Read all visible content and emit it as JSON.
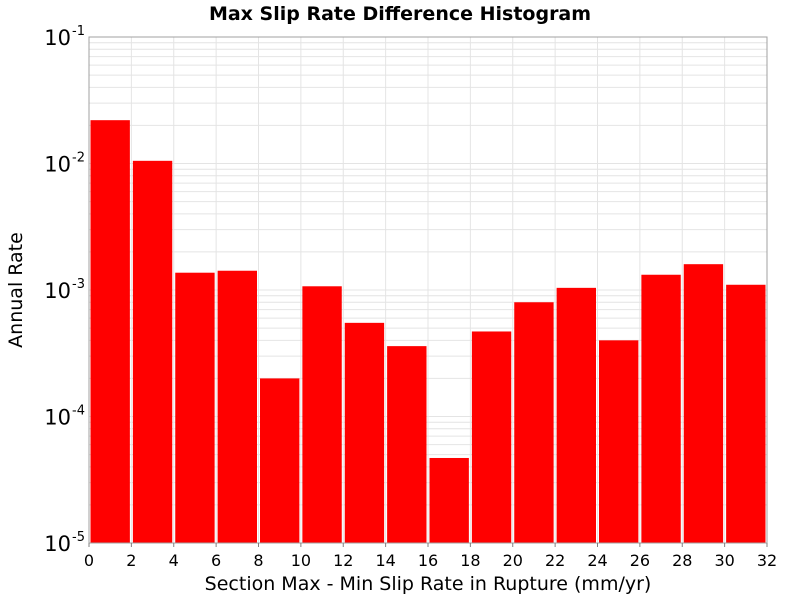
{
  "chart_data": {
    "type": "bar",
    "title": "Max Slip Rate Difference Histogram",
    "xlabel": "Section Max - Min Slip Rate in Rupture (mm/yr)",
    "ylabel": "Annual Rate",
    "y_scale": "log",
    "xlim": [
      0,
      32
    ],
    "ylim": [
      1e-05,
      0.1
    ],
    "x_ticks": [
      "0",
      "2",
      "4",
      "6",
      "8",
      "10",
      "12",
      "14",
      "16",
      "18",
      "20",
      "22",
      "24",
      "26",
      "28",
      "30",
      "32"
    ],
    "y_ticks": [
      {
        "base": "10",
        "exp": "-5",
        "value": 1e-05
      },
      {
        "base": "10",
        "exp": "-4",
        "value": 0.0001
      },
      {
        "base": "10",
        "exp": "-3",
        "value": 0.001
      },
      {
        "base": "10",
        "exp": "-2",
        "value": 0.01
      },
      {
        "base": "10",
        "exp": "-1",
        "value": 0.1
      }
    ],
    "bin_width": 2,
    "bins": [
      {
        "x": 1,
        "value": 0.022
      },
      {
        "x": 3,
        "value": 0.0105
      },
      {
        "x": 5,
        "value": 0.00137
      },
      {
        "x": 7,
        "value": 0.00142
      },
      {
        "x": 9,
        "value": 0.0002
      },
      {
        "x": 11,
        "value": 0.00107
      },
      {
        "x": 13,
        "value": 0.00055
      },
      {
        "x": 15,
        "value": 0.00036
      },
      {
        "x": 17,
        "value": 4.7e-05
      },
      {
        "x": 19,
        "value": 0.00047
      },
      {
        "x": 21,
        "value": 0.0008
      },
      {
        "x": 23,
        "value": 0.00104
      },
      {
        "x": 25,
        "value": 0.0004
      },
      {
        "x": 27,
        "value": 0.00132
      },
      {
        "x": 29,
        "value": 0.0016
      },
      {
        "x": 31,
        "value": 0.0011
      }
    ],
    "bar_color": "#ff0000",
    "grid": true,
    "grid_color": "#e4e4e4",
    "legend": "none"
  }
}
